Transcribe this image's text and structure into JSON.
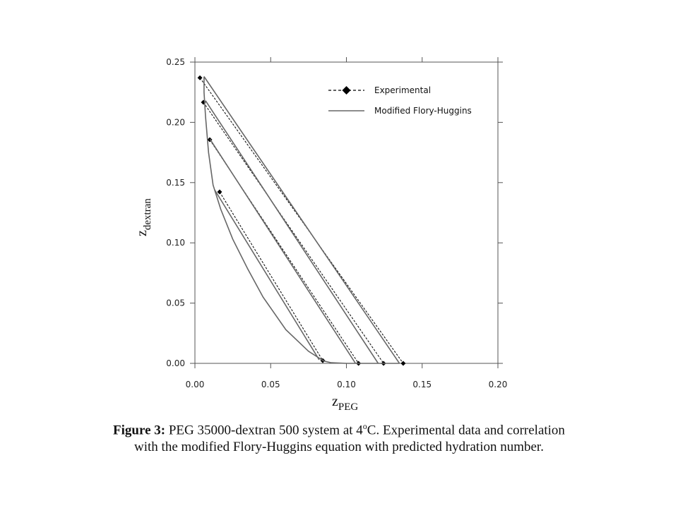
{
  "chart_data": {
    "type": "line",
    "xlim": [
      0,
      0.2
    ],
    "ylim": [
      0,
      0.25
    ],
    "xticks": [
      {
        "value": 0,
        "label": "0.00"
      },
      {
        "value": 0.05,
        "label": "0.05"
      },
      {
        "value": 0.1,
        "label": "0.10"
      },
      {
        "value": 0.15,
        "label": "0.15"
      },
      {
        "value": 0.2,
        "label": "0.20"
      }
    ],
    "yticks": [
      {
        "value": 0,
        "label": "0.00"
      },
      {
        "value": 0.05,
        "label": "0.05"
      },
      {
        "value": 0.1,
        "label": "0.10"
      },
      {
        "value": 0.15,
        "label": "0.15"
      },
      {
        "value": 0.2,
        "label": "0.20"
      },
      {
        "value": 0.25,
        "label": "0.25"
      }
    ],
    "x_label": {
      "symbol": "z",
      "subscript": "PEG"
    },
    "y_label": {
      "symbol": "z",
      "subscript": "dextran"
    },
    "legend": "upper right",
    "series": [
      {
        "name": "Experimental",
        "color": "#000000",
        "dashed": true,
        "marker": "diamond",
        "segments": [
          {
            "x": [
              0.0033,
              0.1375
            ],
            "values": [
              0.237,
              0
            ]
          },
          {
            "x": [
              0.0056,
              0.1245
            ],
            "values": [
              0.2166,
              0
            ]
          },
          {
            "x": [
              0.0098,
              0.108
            ],
            "values": [
              0.1856,
              0
            ]
          },
          {
            "x": [
              0.0163,
              0.0844
            ],
            "values": [
              0.1423,
              0.0023
            ]
          }
        ]
      },
      {
        "name": "Modified Flory-Huggins",
        "color": "#666666",
        "dashed": false,
        "marker": "none",
        "segments": [
          {
            "x": [
              0.006,
              0.135
            ],
            "values": [
              0.238,
              0
            ]
          },
          {
            "x": [
              0.007,
              0.121
            ],
            "values": [
              0.218,
              0
            ]
          },
          {
            "x": [
              0.01,
              0.106
            ],
            "values": [
              0.186,
              0
            ]
          },
          {
            "x": [
              0.013,
              0.082
            ],
            "values": [
              0.144,
              0.003
            ]
          },
          {
            "x": [
              0.135,
              0.12,
              0.1,
              0.09,
              0.085,
              0.075,
              0.06,
              0.045,
              0.035,
              0.025,
              0.017,
              0.012,
              0.009,
              0.007,
              0.006,
              0.006
            ],
            "values": [
              0,
              0,
              0,
              0.0005,
              0.002,
              0.01,
              0.028,
              0.055,
              0.078,
              0.103,
              0.128,
              0.148,
              0.175,
              0.205,
              0.225,
              0.238
            ]
          }
        ]
      }
    ]
  },
  "caption": {
    "label": "Figure 3:",
    "text_before_sup": " PEG 35000-dextran 500 system at 4",
    "sup": "o",
    "text_after_sup": "C. Experimental data and correlation",
    "line2": "with the modified Flory-Huggins equation with predicted hydration number."
  }
}
